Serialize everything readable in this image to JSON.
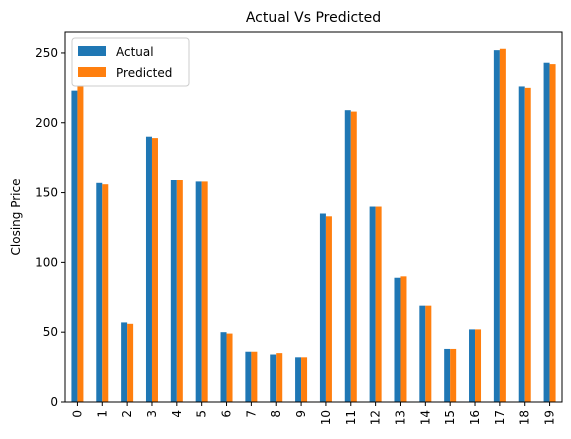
{
  "chart_data": {
    "type": "bar",
    "title": "Actual Vs Predicted",
    "xlabel": "",
    "ylabel": "Closing Price",
    "categories": [
      "0",
      "1",
      "2",
      "3",
      "4",
      "5",
      "6",
      "7",
      "8",
      "9",
      "10",
      "11",
      "12",
      "13",
      "14",
      "15",
      "16",
      "17",
      "18",
      "19"
    ],
    "series": [
      {
        "name": "Actual",
        "color": "#1f77b4",
        "values": [
          223,
          157,
          57,
          190,
          159,
          158,
          50,
          36,
          34,
          32,
          135,
          209,
          140,
          89,
          69,
          38,
          52,
          252,
          226,
          243
        ]
      },
      {
        "name": "Predicted",
        "color": "#ff7f0e",
        "values": [
          226,
          156,
          56,
          189,
          159,
          158,
          49,
          36,
          35,
          32,
          133,
          208,
          140,
          90,
          69,
          38,
          52,
          253,
          225,
          242
        ]
      }
    ],
    "ylim": [
      0,
      265
    ],
    "yticks": [
      0,
      50,
      100,
      150,
      200,
      250
    ],
    "grid": false,
    "legend_position": "top-left"
  }
}
